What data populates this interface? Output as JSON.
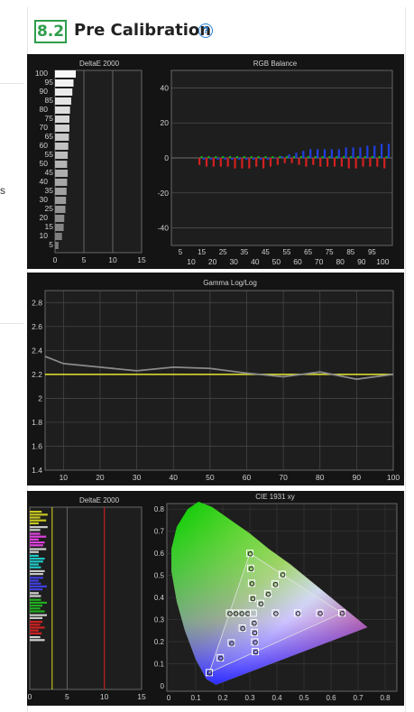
{
  "section": {
    "number": "8.2",
    "title": "Pre Calibration",
    "help_icon": "question-circle-icon"
  },
  "left_margin": {
    "fragment": "s"
  },
  "colors": {
    "badge": "#2e9d4a",
    "help": "#2a7fd4",
    "panel_bg": "#141414",
    "red": "#d42020",
    "blue": "#2040e0",
    "yellow": "#e8e830"
  },
  "chart_data": [
    {
      "type": "bar",
      "title": "DeltaE 2000",
      "orientation": "horizontal",
      "categories": [
        "5",
        "10",
        "15",
        "20",
        "25",
        "30",
        "35",
        "40",
        "45",
        "50",
        "55",
        "60",
        "65",
        "70",
        "75",
        "80",
        "85",
        "90",
        "95",
        "100"
      ],
      "values": [
        0.6,
        1.2,
        1.5,
        1.6,
        1.8,
        1.9,
        2.0,
        2.1,
        2.2,
        2.1,
        2.2,
        2.3,
        2.4,
        2.5,
        2.5,
        2.6,
        2.8,
        3.0,
        3.2,
        3.6
      ],
      "xticks": [
        "0",
        "5",
        "10",
        "15"
      ],
      "xlim": [
        0,
        15
      ],
      "ytick_labels": [
        "5",
        "10",
        "15",
        "20",
        "25",
        "30",
        "35",
        "40",
        "45",
        "50",
        "55",
        "60",
        "65",
        "70",
        "75",
        "80",
        "85",
        "90",
        "95",
        "100"
      ]
    },
    {
      "type": "bar",
      "title": "RGB Balance",
      "categories_top": [
        "5",
        "15",
        "25",
        "35",
        "45",
        "55",
        "65",
        "75",
        "85",
        "95"
      ],
      "categories_bottom": [
        "10",
        "20",
        "30",
        "40",
        "50",
        "60",
        "70",
        "80",
        "90",
        "100"
      ],
      "ylim": [
        -50,
        50
      ],
      "yticks": [
        "40",
        "20",
        "0",
        "-20",
        "-40"
      ],
      "series": [
        {
          "color": "red",
          "values": [
            -4,
            -5,
            -5,
            -5,
            -5,
            -6,
            -6,
            -6,
            -5,
            -6,
            -5,
            -4,
            -3,
            -3,
            -4,
            -5,
            -4,
            -5,
            -5,
            -5,
            -5,
            -6,
            -6,
            -5,
            -5,
            -5,
            -6
          ]
        },
        {
          "color": "green",
          "values": [
            1,
            1,
            1,
            1,
            1,
            1,
            1,
            1,
            1,
            1,
            1,
            1,
            1,
            1,
            1,
            1,
            1,
            1,
            1,
            1,
            1,
            1,
            1,
            1,
            1,
            1,
            1
          ]
        },
        {
          "color": "blue",
          "values": [
            -1,
            -1,
            -1,
            -1,
            -1,
            -1,
            -1,
            -1,
            -1,
            -1,
            0,
            1,
            2,
            3,
            4,
            5,
            5,
            5,
            5,
            5,
            6,
            6,
            6,
            7,
            7,
            8,
            8
          ]
        }
      ]
    },
    {
      "type": "line",
      "title": "Gamma Log/Log",
      "x": [
        5,
        10,
        20,
        30,
        40,
        50,
        60,
        70,
        80,
        90,
        100
      ],
      "y_measured": [
        2.35,
        2.29,
        2.26,
        2.23,
        2.26,
        2.25,
        2.21,
        2.18,
        2.22,
        2.16,
        2.2
      ],
      "y_target": 2.2,
      "ylim": [
        1.4,
        2.9
      ],
      "yticks": [
        "2.8",
        "2.6",
        "2.4",
        "2.2",
        "2",
        "1.8",
        "1.6",
        "1.4"
      ],
      "xticks": [
        "10",
        "20",
        "30",
        "40",
        "50",
        "60",
        "70",
        "80",
        "90",
        "100"
      ]
    },
    {
      "type": "bar",
      "title": "DeltaE 2000",
      "orientation": "horizontal",
      "xticks": [
        "0",
        "5",
        "10",
        "15"
      ],
      "reference_lines": [
        3,
        10
      ]
    },
    {
      "type": "scatter",
      "title": "CIE 1931 xy",
      "xticks": [
        "0",
        "0.1",
        "0.2",
        "0.3",
        "0.4",
        "0.5",
        "0.6",
        "0.7",
        "0.8"
      ],
      "yticks": [
        "0.8",
        "0.7",
        "0.6",
        "0.5",
        "0.4",
        "0.3",
        "0.2",
        "0.1",
        "0"
      ],
      "gamut": {
        "red": [
          0.64,
          0.33
        ],
        "green": [
          0.3,
          0.6
        ],
        "blue": [
          0.15,
          0.06
        ],
        "white": [
          0.3127,
          0.329
        ]
      }
    }
  ]
}
